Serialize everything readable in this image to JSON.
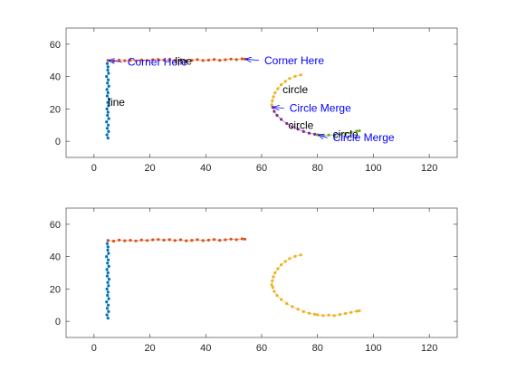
{
  "colors": {
    "blue": "#0072BD",
    "orange": "#D95319",
    "yellow": "#EDB120",
    "purple": "#7E2F8E",
    "green": "#77AC30",
    "annotation": "#0000FF",
    "axis": "#262626"
  },
  "chart_data": [
    {
      "type": "scatter",
      "title": "",
      "xlabel": "",
      "ylabel": "",
      "xlim": [
        -10,
        130
      ],
      "ylim": [
        -10,
        70
      ],
      "xticks": [
        0,
        20,
        40,
        60,
        80,
        100,
        120
      ],
      "yticks": [
        0,
        20,
        40,
        60
      ],
      "xtick_labels": [
        "0",
        "20",
        "40",
        "60",
        "80",
        "100",
        "120"
      ],
      "ytick_labels": [
        "0",
        "20",
        "40",
        "60"
      ],
      "grid": false,
      "series": [
        {
          "color_key": "blue",
          "points": [
            [
              5,
              2
            ],
            [
              4.6,
              4
            ],
            [
              5.2,
              6
            ],
            [
              4.7,
              8
            ],
            [
              5.1,
              10
            ],
            [
              4.5,
              12
            ],
            [
              5.3,
              14
            ],
            [
              4.8,
              16
            ],
            [
              5.0,
              18
            ],
            [
              4.6,
              20
            ],
            [
              5.2,
              22
            ],
            [
              4.9,
              24
            ],
            [
              5.4,
              26
            ],
            [
              4.7,
              28
            ],
            [
              5.0,
              30
            ],
            [
              4.6,
              32
            ],
            [
              5.3,
              34
            ],
            [
              4.8,
              36
            ],
            [
              5.1,
              38
            ],
            [
              4.5,
              40
            ],
            [
              5.2,
              42
            ],
            [
              4.9,
              44
            ],
            [
              5.0,
              46
            ],
            [
              4.7,
              48
            ],
            [
              5.0,
              50
            ]
          ]
        },
        {
          "color_key": "orange",
          "points": [
            [
              5,
              50
            ],
            [
              7,
              49.6
            ],
            [
              9,
              50.2
            ],
            [
              11,
              49.8
            ],
            [
              13,
              50.1
            ],
            [
              15,
              49.7
            ],
            [
              17,
              50.3
            ],
            [
              19,
              50.0
            ],
            [
              21,
              50.4
            ],
            [
              23,
              50.6
            ],
            [
              25,
              50.2
            ],
            [
              27,
              50.5
            ],
            [
              29,
              50.0
            ],
            [
              31,
              50.4
            ],
            [
              33,
              49.8
            ],
            [
              35,
              50.1
            ],
            [
              37,
              50.5
            ],
            [
              39,
              49.9
            ],
            [
              41,
              50.2
            ],
            [
              43,
              50.6
            ],
            [
              45,
              50.1
            ],
            [
              47,
              50.4
            ],
            [
              49,
              50.8
            ],
            [
              51,
              50.5
            ],
            [
              53,
              51.0
            ],
            [
              54,
              50.8
            ]
          ]
        },
        {
          "color_key": "yellow",
          "points": [
            [
              74,
              41
            ],
            [
              72,
              40.2
            ],
            [
              70,
              38.8
            ],
            [
              68.5,
              37
            ],
            [
              67,
              35
            ],
            [
              65.8,
              32.5
            ],
            [
              64.8,
              30
            ],
            [
              64.2,
              27.5
            ],
            [
              63.8,
              25
            ],
            [
              63.6,
              22.5
            ],
            [
              64,
              21
            ]
          ]
        },
        {
          "color_key": "purple",
          "points": [
            [
              64,
              21
            ],
            [
              64.5,
              18.5
            ],
            [
              65.5,
              16
            ],
            [
              67,
              13.5
            ],
            [
              69,
              11
            ],
            [
              71,
              9
            ],
            [
              73,
              7.5
            ],
            [
              75,
              6
            ],
            [
              77,
              5
            ],
            [
              79,
              4.3
            ],
            [
              80,
              4
            ]
          ]
        },
        {
          "color_key": "green",
          "points": [
            [
              80,
              4
            ],
            [
              82,
              3.6
            ],
            [
              84,
              3.9
            ],
            [
              86,
              3.5
            ],
            [
              88,
              4.2
            ],
            [
              90,
              4.8
            ],
            [
              92,
              5.5
            ],
            [
              94,
              6.2
            ],
            [
              95,
              6.5
            ]
          ]
        }
      ],
      "annotations": [
        {
          "text": "Corner Here",
          "color_key": "annotation",
          "arrow": true,
          "target": [
            5,
            50
          ],
          "at": [
            11,
            49
          ]
        },
        {
          "text": "line",
          "color_key": "text",
          "arrow": false,
          "at": [
            29,
            49.5
          ]
        },
        {
          "text": "line",
          "color_key": "text",
          "arrow": false,
          "at": [
            5,
            24
          ]
        },
        {
          "text": "Corner Here",
          "color_key": "annotation",
          "arrow": true,
          "target": [
            54,
            50.8
          ],
          "at": [
            60,
            50
          ]
        },
        {
          "text": "circle",
          "color_key": "text",
          "arrow": false,
          "at": [
            67.5,
            32
          ]
        },
        {
          "text": "Circle Merge",
          "color_key": "annotation",
          "arrow": true,
          "target": [
            64,
            21
          ],
          "at": [
            69,
            20.5
          ]
        },
        {
          "text": "circle",
          "color_key": "text",
          "arrow": false,
          "at": [
            69.5,
            10
          ]
        },
        {
          "text": "circle",
          "color_key": "text",
          "arrow": false,
          "at": [
            85.5,
            4.4
          ]
        },
        {
          "text": "Circle Merge",
          "color_key": "annotation",
          "arrow": true,
          "target": [
            80,
            4
          ],
          "at": [
            84.5,
            2.2
          ]
        }
      ]
    },
    {
      "type": "scatter",
      "title": "",
      "xlabel": "",
      "ylabel": "",
      "xlim": [
        -10,
        130
      ],
      "ylim": [
        -10,
        70
      ],
      "xticks": [
        0,
        20,
        40,
        60,
        80,
        100,
        120
      ],
      "yticks": [
        0,
        20,
        40,
        60
      ],
      "xtick_labels": [
        "0",
        "20",
        "40",
        "60",
        "80",
        "100",
        "120"
      ],
      "ytick_labels": [
        "0",
        "20",
        "40",
        "60"
      ],
      "grid": false,
      "series": [
        {
          "color_key": "blue",
          "points": [
            [
              5,
              2
            ],
            [
              4.6,
              4
            ],
            [
              5.2,
              6
            ],
            [
              4.7,
              8
            ],
            [
              5.1,
              10
            ],
            [
              4.5,
              12
            ],
            [
              5.3,
              14
            ],
            [
              4.8,
              16
            ],
            [
              5.0,
              18
            ],
            [
              4.6,
              20
            ],
            [
              5.2,
              22
            ],
            [
              4.9,
              24
            ],
            [
              5.4,
              26
            ],
            [
              4.7,
              28
            ],
            [
              5.0,
              30
            ],
            [
              4.6,
              32
            ],
            [
              5.3,
              34
            ],
            [
              4.8,
              36
            ],
            [
              5.1,
              38
            ],
            [
              4.5,
              40
            ],
            [
              5.2,
              42
            ],
            [
              4.9,
              44
            ],
            [
              5.0,
              46
            ],
            [
              4.7,
              48
            ],
            [
              5.0,
              50
            ]
          ]
        },
        {
          "color_key": "orange",
          "points": [
            [
              5,
              50
            ],
            [
              7,
              49.6
            ],
            [
              9,
              50.2
            ],
            [
              11,
              49.8
            ],
            [
              13,
              50.1
            ],
            [
              15,
              49.7
            ],
            [
              17,
              50.3
            ],
            [
              19,
              50.0
            ],
            [
              21,
              50.4
            ],
            [
              23,
              50.6
            ],
            [
              25,
              50.2
            ],
            [
              27,
              50.5
            ],
            [
              29,
              50.0
            ],
            [
              31,
              50.4
            ],
            [
              33,
              49.8
            ],
            [
              35,
              50.1
            ],
            [
              37,
              50.5
            ],
            [
              39,
              49.9
            ],
            [
              41,
              50.2
            ],
            [
              43,
              50.6
            ],
            [
              45,
              50.1
            ],
            [
              47,
              50.4
            ],
            [
              49,
              50.8
            ],
            [
              51,
              50.5
            ],
            [
              53,
              51.0
            ],
            [
              54,
              50.8
            ]
          ]
        },
        {
          "color_key": "yellow",
          "points": [
            [
              74,
              41
            ],
            [
              72,
              40.2
            ],
            [
              70,
              38.8
            ],
            [
              68.5,
              37
            ],
            [
              67,
              35
            ],
            [
              65.8,
              32.5
            ],
            [
              64.8,
              30
            ],
            [
              64.2,
              27.5
            ],
            [
              63.8,
              25
            ],
            [
              63.6,
              22.5
            ],
            [
              64,
              21
            ],
            [
              64.5,
              18.5
            ],
            [
              65.5,
              16
            ],
            [
              67,
              13.5
            ],
            [
              69,
              11
            ],
            [
              71,
              9
            ],
            [
              73,
              7.5
            ],
            [
              75,
              6
            ],
            [
              77,
              5
            ],
            [
              79,
              4.3
            ],
            [
              80,
              4
            ],
            [
              82,
              3.6
            ],
            [
              84,
              3.9
            ],
            [
              86,
              3.5
            ],
            [
              88,
              4.2
            ],
            [
              90,
              4.8
            ],
            [
              92,
              5.5
            ],
            [
              94,
              6.2
            ],
            [
              95,
              6.5
            ]
          ]
        }
      ],
      "annotations": []
    }
  ]
}
